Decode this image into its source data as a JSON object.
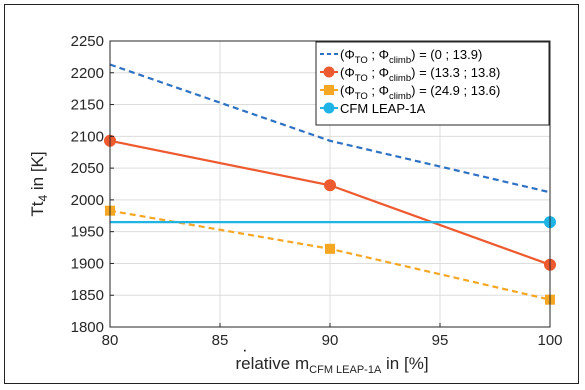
{
  "chart_data": {
    "type": "line",
    "x": [
      80,
      90,
      100
    ],
    "xlim": [
      80,
      100
    ],
    "ylim": [
      1800,
      2250
    ],
    "xticks": [
      80,
      85,
      90,
      95,
      100
    ],
    "yticks": [
      1800,
      1850,
      1900,
      1950,
      2000,
      2050,
      2100,
      2150,
      2200,
      2250
    ],
    "grid": true,
    "legend_position": "top-right",
    "xlabel": {
      "pre": "relative ",
      "symbol": "m",
      "sub": "CFM LEAP-1A",
      "post": " in [%]"
    },
    "ylabel": {
      "pre": "Tt",
      "sub": "4",
      "post": " in [K]"
    },
    "series": [
      {
        "name": "(Φ_TO ; Φ_climb) = (0 ; 13.9)",
        "legend": {
          "a": "(Φ",
          "s1": "TO",
          "b": " ; Φ",
          "s2": "climb",
          "c": ") = (0 ; 13.9)"
        },
        "values": [
          2213,
          2093,
          2012
        ],
        "color": "#2F72C4",
        "dash": true,
        "marker": "none"
      },
      {
        "name": "(Φ_TO ; Φ_climb) = (13.3 ; 13.8)",
        "legend": {
          "a": "(Φ",
          "s1": "TO",
          "b": " ; Φ",
          "s2": "climb",
          "c": ") = (13.3 ; 13.8)"
        },
        "values": [
          2093,
          2023,
          1898
        ],
        "color": "#EE5A2F",
        "dash": false,
        "marker": "circle"
      },
      {
        "name": "(Φ_TO ; Φ_climb) = (24.9 ; 13.6)",
        "legend": {
          "a": "(Φ",
          "s1": "TO",
          "b": " ; Φ",
          "s2": "climb",
          "c": ") = (24.9 ; 13.6)"
        },
        "values": [
          1983,
          1923,
          1843
        ],
        "color": "#F5A623",
        "dash": true,
        "marker": "square"
      },
      {
        "name": "CFM LEAP-1A",
        "legend": {
          "a": "CFM LEAP-1A",
          "s1": "",
          "b": "",
          "s2": "",
          "c": ""
        },
        "values": [
          1965,
          1965,
          1965
        ],
        "color": "#20B4E6",
        "dash": false,
        "marker": "circle-end"
      }
    ]
  }
}
